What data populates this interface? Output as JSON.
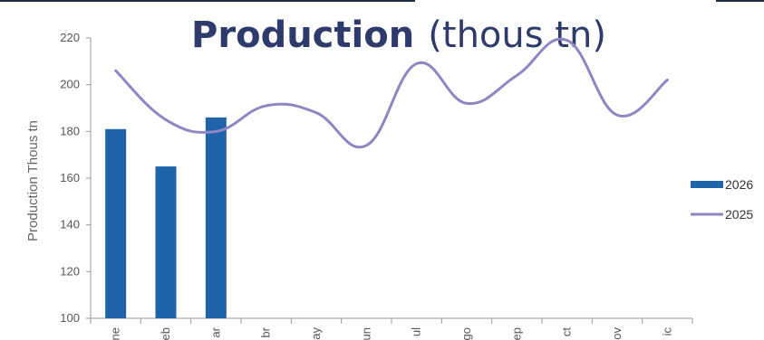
{
  "chart_data": {
    "type": "bar",
    "title": "Production",
    "title_suffix": "(thous tn)",
    "ylabel": "Production Thous tn",
    "xlabel": "",
    "ylim": [
      100,
      220
    ],
    "yticks": [
      100,
      120,
      140,
      160,
      180,
      200,
      220
    ],
    "categories": [
      "ne",
      "eb",
      "ar",
      "br",
      "ay",
      "un",
      "ul",
      "go",
      "ep",
      "ct",
      "ov",
      "ic"
    ],
    "series": [
      {
        "name": "2026",
        "type": "bar",
        "color": "#1f63a8",
        "values": [
          181,
          165,
          186,
          null,
          null,
          null,
          null,
          null,
          null,
          null,
          null,
          null
        ]
      },
      {
        "name": "2025",
        "type": "line",
        "color": "#8f86c2",
        "values": [
          206,
          185,
          180,
          191,
          188,
          174,
          209,
          192,
          204,
          219,
          187,
          202
        ]
      }
    ],
    "legend_position": "right",
    "grid": false
  }
}
